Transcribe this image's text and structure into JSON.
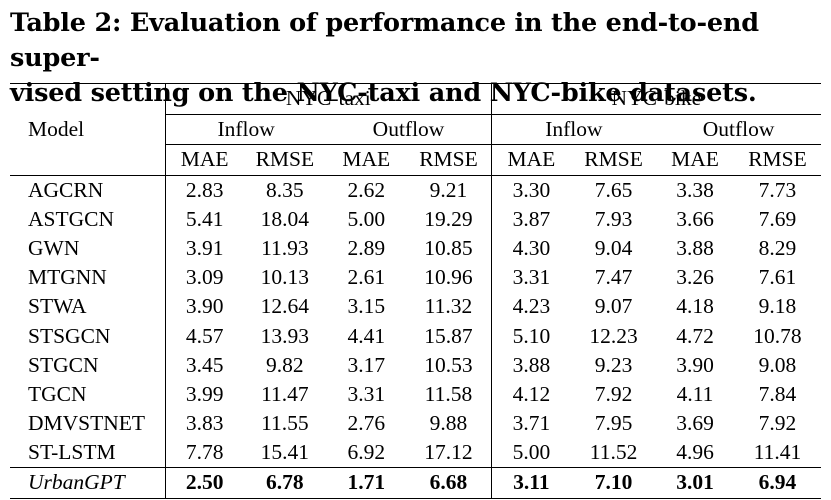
{
  "caption": {
    "line1": "Table 2: Evaluation of performance in the end-to-end super-",
    "line2": "vised setting on the NYC-taxi and NYC-bike datasets."
  },
  "header": {
    "model_label": "Model",
    "datasets": [
      "NYC-taxi",
      "NYC-bike"
    ],
    "flows": [
      "Inflow",
      "Outflow",
      "Inflow",
      "Outflow"
    ],
    "metrics": [
      "MAE",
      "RMSE",
      "MAE",
      "RMSE",
      "MAE",
      "RMSE",
      "MAE",
      "RMSE"
    ]
  },
  "rows": [
    {
      "model": "AGCRN",
      "values": [
        "2.83",
        "8.35",
        "2.62",
        "9.21",
        "3.30",
        "7.65",
        "3.38",
        "7.73"
      ]
    },
    {
      "model": "ASTGCN",
      "values": [
        "5.41",
        "18.04",
        "5.00",
        "19.29",
        "3.87",
        "7.93",
        "3.66",
        "7.69"
      ]
    },
    {
      "model": "GWN",
      "values": [
        "3.91",
        "11.93",
        "2.89",
        "10.85",
        "4.30",
        "9.04",
        "3.88",
        "8.29"
      ]
    },
    {
      "model": "MTGNN",
      "values": [
        "3.09",
        "10.13",
        "2.61",
        "10.96",
        "3.31",
        "7.47",
        "3.26",
        "7.61"
      ]
    },
    {
      "model": "STWA",
      "values": [
        "3.90",
        "12.64",
        "3.15",
        "11.32",
        "4.23",
        "9.07",
        "4.18",
        "9.18"
      ]
    },
    {
      "model": "STSGCN",
      "values": [
        "4.57",
        "13.93",
        "4.41",
        "15.87",
        "5.10",
        "12.23",
        "4.72",
        "10.78"
      ]
    },
    {
      "model": "STGCN",
      "values": [
        "3.45",
        "9.82",
        "3.17",
        "10.53",
        "3.88",
        "9.23",
        "3.90",
        "9.08"
      ]
    },
    {
      "model": "TGCN",
      "values": [
        "3.99",
        "11.47",
        "3.31",
        "11.58",
        "4.12",
        "7.92",
        "4.11",
        "7.84"
      ]
    },
    {
      "model": "DMVSTNET",
      "values": [
        "3.83",
        "11.55",
        "2.76",
        "9.88",
        "3.71",
        "7.95",
        "3.69",
        "7.92"
      ]
    },
    {
      "model": "ST-LSTM",
      "values": [
        "7.78",
        "15.41",
        "6.92",
        "17.12",
        "5.00",
        "11.52",
        "4.96",
        "11.41"
      ]
    }
  ],
  "final_row": {
    "model": "UrbanGPT",
    "values": [
      "2.50",
      "6.78",
      "1.71",
      "6.68",
      "3.11",
      "7.10",
      "3.01",
      "6.94"
    ]
  }
}
